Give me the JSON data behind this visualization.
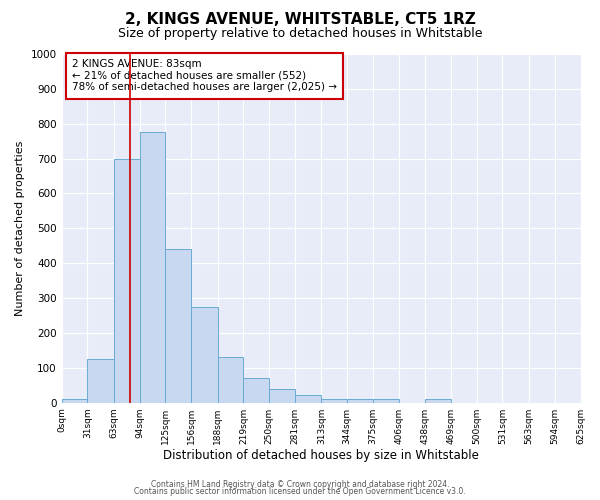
{
  "title": "2, KINGS AVENUE, WHITSTABLE, CT5 1RZ",
  "subtitle": "Size of property relative to detached houses in Whitstable",
  "xlabel": "Distribution of detached houses by size in Whitstable",
  "ylabel": "Number of detached properties",
  "bin_edges": [
    0,
    31,
    63,
    94,
    125,
    156,
    188,
    219,
    250,
    281,
    313,
    344,
    375,
    406,
    438,
    469,
    500,
    531,
    563,
    594,
    625
  ],
  "bar_heights": [
    10,
    125,
    700,
    775,
    440,
    275,
    130,
    70,
    38,
    22,
    12,
    12,
    10,
    0,
    10,
    0,
    0,
    0,
    0,
    0
  ],
  "bar_color": "#c8d8f0",
  "bar_edge_color": "#6aaad4",
  "property_size": 83,
  "vline_color": "#cc0000",
  "annotation_line1": "2 KINGS AVENUE: 83sqm",
  "annotation_line2": "← 21% of detached houses are smaller (552)",
  "annotation_line3": "78% of semi-detached houses are larger (2,025) →",
  "annotation_box_color": "#cc0000",
  "ylim": [
    0,
    1000
  ],
  "yticks": [
    0,
    100,
    200,
    300,
    400,
    500,
    600,
    700,
    800,
    900,
    1000
  ],
  "background_color": "#e8ecf8",
  "grid_color": "#ffffff",
  "footer_line1": "Contains HM Land Registry data © Crown copyright and database right 2024.",
  "footer_line2": "Contains public sector information licensed under the Open Government Licence v3.0."
}
